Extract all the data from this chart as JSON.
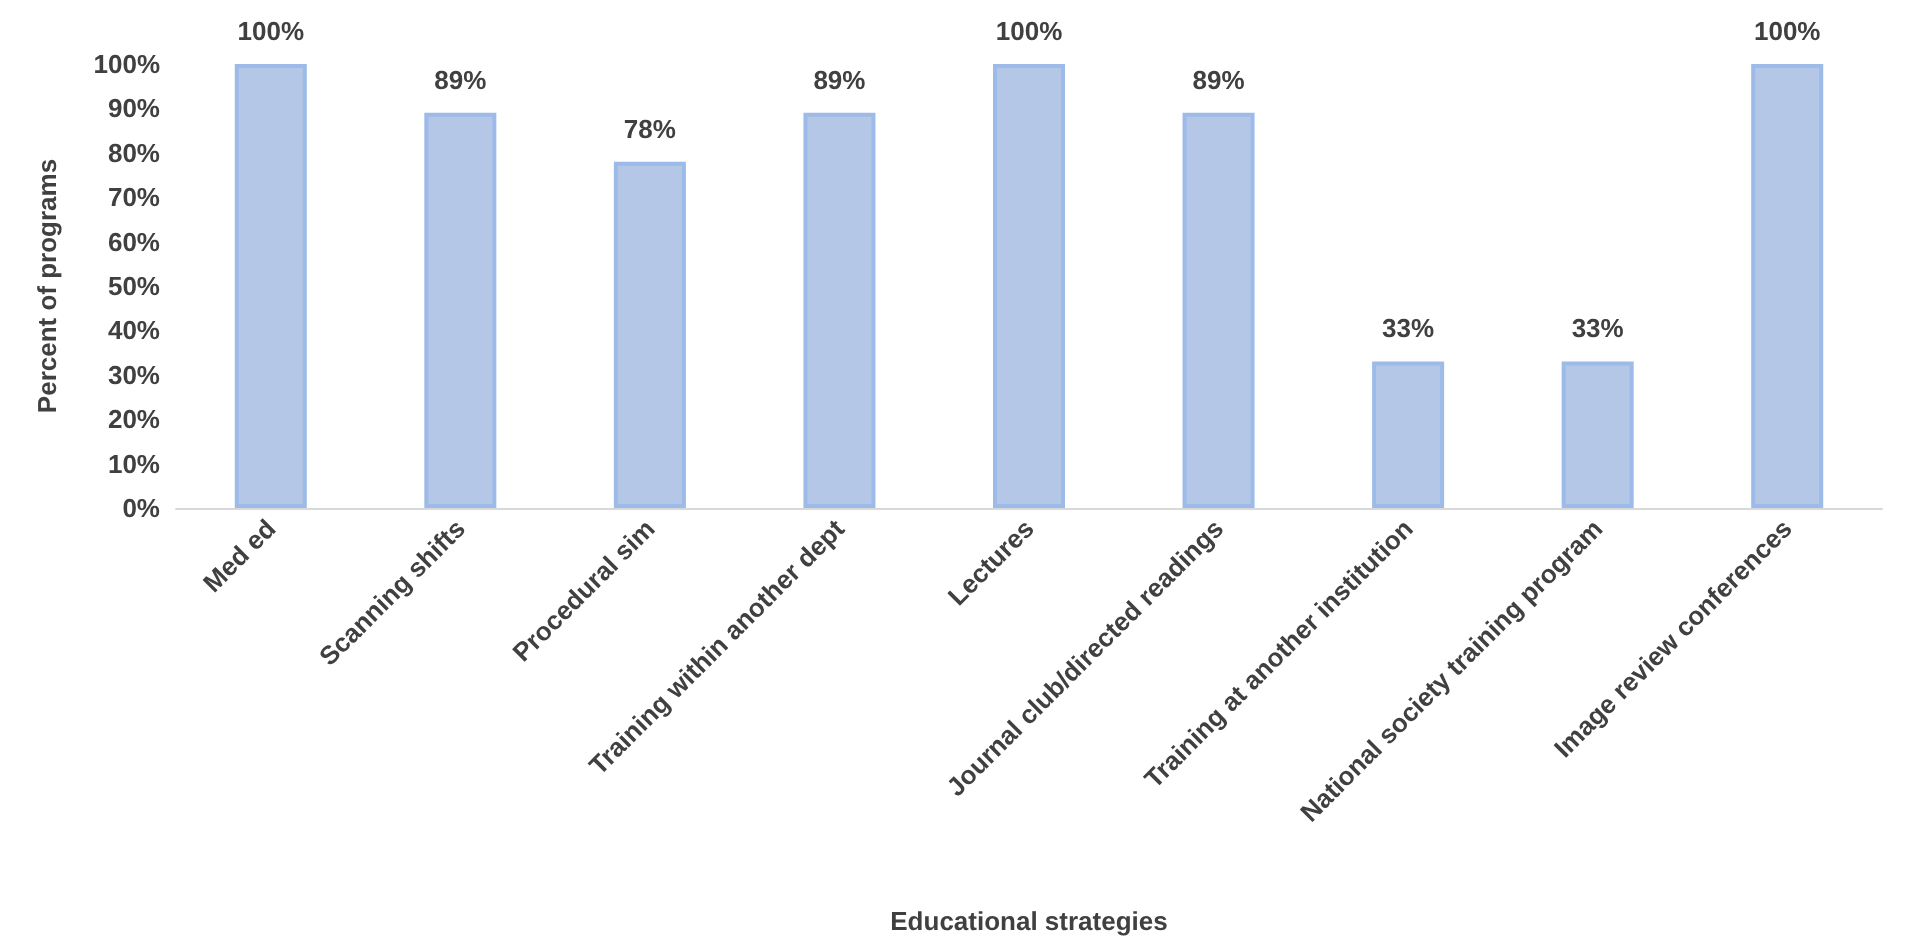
{
  "chart_data": {
    "type": "bar",
    "xlabel": "Educational strategies",
    "ylabel": "Percent of programs",
    "categories": [
      "Med ed",
      "Scanning shifts",
      "Procedural sim",
      "Training within another dept",
      "Lectures",
      "Journal club/directed readings",
      "Training at another institution",
      "National society training program",
      "Image review conferences"
    ],
    "values": [
      100,
      89,
      78,
      89,
      100,
      89,
      33,
      33,
      100
    ],
    "value_labels": [
      "100%",
      "89%",
      "78%",
      "89%",
      "100%",
      "89%",
      "33%",
      "33%",
      "100%"
    ],
    "color": "#b4c7e7",
    "ylim": [
      0,
      100
    ],
    "yticks": [
      {
        "value": 0,
        "label": "0%"
      },
      {
        "value": 10,
        "label": "10%"
      },
      {
        "value": 20,
        "label": "20%"
      },
      {
        "value": 30,
        "label": "30%"
      },
      {
        "value": 40,
        "label": "40%"
      },
      {
        "value": 50,
        "label": "50%"
      },
      {
        "value": 60,
        "label": "60%"
      },
      {
        "value": 70,
        "label": "70%"
      },
      {
        "value": 80,
        "label": "80%"
      },
      {
        "value": 90,
        "label": "90%"
      },
      {
        "value": 100,
        "label": "100%"
      }
    ],
    "grid": false
  }
}
